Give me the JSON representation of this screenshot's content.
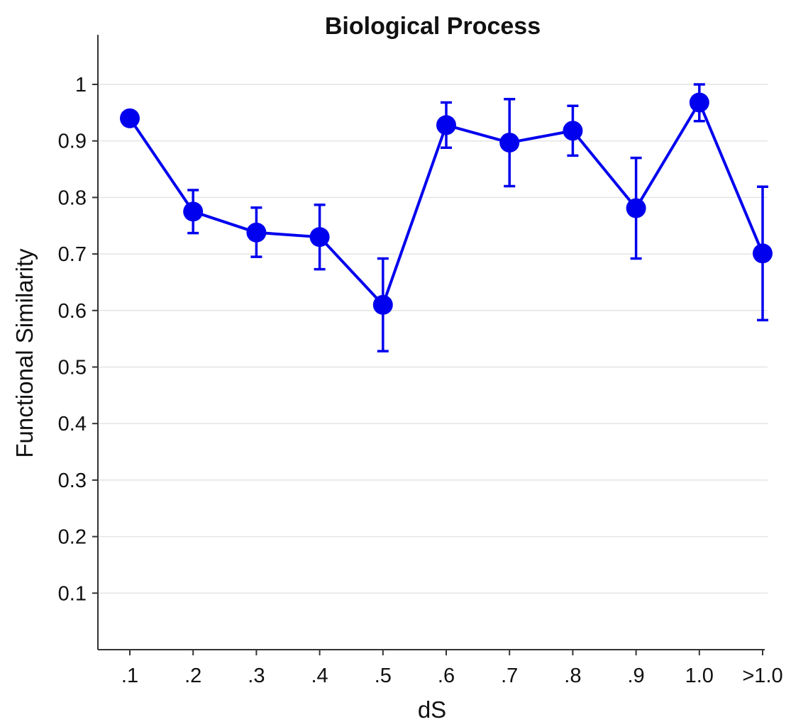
{
  "chart_data": {
    "type": "line",
    "title": "Biological Process",
    "xlabel": "dS",
    "ylabel": "Functional Similarity",
    "categories": [
      ".1",
      ".2",
      ".3",
      ".4",
      ".5",
      ".6",
      ".7",
      ".8",
      ".9",
      "1.0",
      ">1.0"
    ],
    "y_ticks": [
      "0.1",
      "0.2",
      "0.3",
      "0.4",
      "0.5",
      "0.6",
      "0.7",
      "0.8",
      "0.9",
      "1"
    ],
    "ylim": [
      0,
      1.04
    ],
    "grid": true,
    "series": [
      {
        "color": "#0000ee",
        "values": [
          0.94,
          0.775,
          0.738,
          0.73,
          0.61,
          0.928,
          0.897,
          0.918,
          0.781,
          0.968,
          0.701
        ],
        "error_low": [
          0.94,
          0.737,
          0.695,
          0.673,
          0.528,
          0.888,
          0.82,
          0.874,
          0.692,
          0.935,
          0.583
        ],
        "error_high": [
          0.94,
          0.813,
          0.782,
          0.787,
          0.692,
          0.968,
          0.974,
          0.962,
          0.87,
          1.0,
          0.819
        ]
      }
    ]
  }
}
